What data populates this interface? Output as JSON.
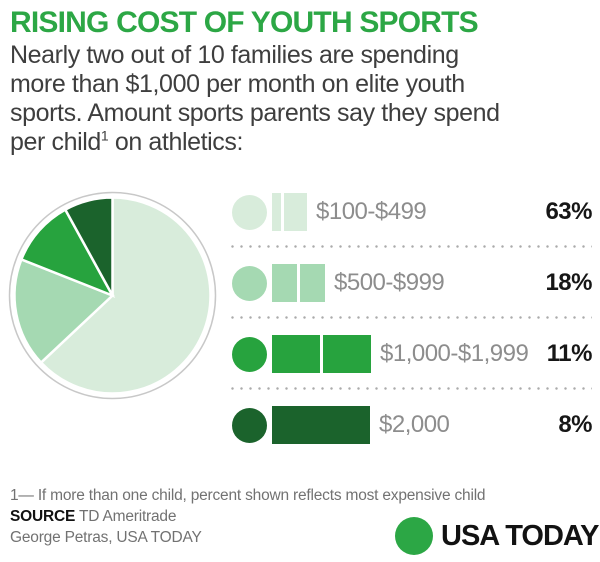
{
  "header": {
    "title": "RISING COST OF YOUTH SPORTS",
    "subtitle_lines": [
      "Nearly two out of 10 families are spending",
      "more than $1,000 per month on elite youth",
      "sports. Amount sports parents say they spend"
    ],
    "subtitle_line4": {
      "text": "per child",
      "sup": "1",
      "rest": " on athletics:"
    }
  },
  "colors": {
    "accent": "#2ca745",
    "slice_light": "#d8ecdb",
    "slice_medium_light": "#a5d9b2",
    "slice_bright": "#27a33e",
    "slice_dark": "#1b632c",
    "ring": "#c8c8c8",
    "label_gray": "#8d8d8d"
  },
  "chart_data": {
    "type": "pie",
    "title": "RISING COST OF YOUTH SPORTS",
    "categories": [
      "$100-$499",
      "$500-$999",
      "$1,000-$1,999",
      "$2,000"
    ],
    "values": [
      63,
      18,
      11,
      8
    ],
    "unit": "%",
    "colors": [
      "#d8ecdb",
      "#a5d9b2",
      "#27a33e",
      "#1b632c"
    ],
    "start_angle_deg": -90,
    "direction": "clockwise",
    "legend_position": "right"
  },
  "legend": {
    "rows": [
      {
        "label": "$100-$499",
        "percent": "63%",
        "color": "#d8ecdb",
        "segments": [
          9,
          23
        ]
      },
      {
        "label": "$500-$999",
        "percent": "18%",
        "color": "#a5d9b2",
        "segments": [
          25,
          25
        ]
      },
      {
        "label": "$1,000-$1,999",
        "percent": "11%",
        "color": "#27a33e",
        "segments": [
          48,
          48
        ]
      },
      {
        "label": "$2,000",
        "percent": "8%",
        "color": "#1b632c",
        "segments": [
          98
        ]
      }
    ]
  },
  "footer": {
    "footnote": "1— If more than one child, percent shown reflects most expensive child",
    "source_label": "SOURCE",
    "source_value": "TD Ameritrade",
    "byline": "George Petras, USA TODAY",
    "logo_text": "USA TODAY"
  }
}
